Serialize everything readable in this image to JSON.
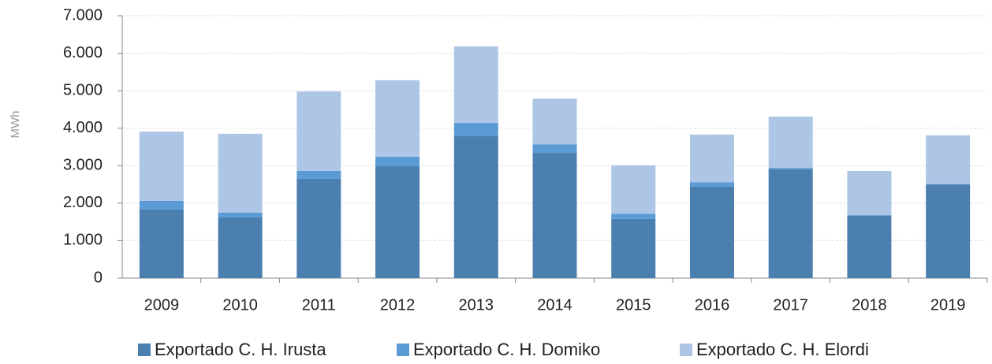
{
  "chart_data": {
    "type": "stacked_bar",
    "y_label": "MWh",
    "categories": [
      "2009",
      "2010",
      "2011",
      "2012",
      "2013",
      "2014",
      "2015",
      "2016",
      "2017",
      "2018",
      "2019"
    ],
    "series": [
      {
        "name": "Exportado C. H. Irusta",
        "color": "#4a7fb0",
        "values": [
          1830,
          1620,
          2650,
          3000,
          3800,
          3340,
          1580,
          2440,
          2900,
          1660,
          2500
        ]
      },
      {
        "name": "Exportado C. H. Domiko",
        "color": "#5b9bd5",
        "values": [
          230,
          125,
          210,
          240,
          340,
          230,
          140,
          120,
          40,
          20,
          10
        ]
      },
      {
        "name": "Exportado C. H. Elordi",
        "color": "#adc6e6",
        "values": [
          1850,
          2105,
          2120,
          2040,
          2040,
          1220,
          1290,
          1270,
          1370,
          1180,
          1300
        ]
      }
    ],
    "ylim": [
      0,
      7000
    ],
    "yticks": [
      0,
      {
        "value": 1000,
        "label": "1.000"
      },
      {
        "value": 2000,
        "label": "2.000"
      },
      {
        "value": 3000,
        "label": "3.000"
      },
      {
        "value": 4000,
        "label": "4.000"
      },
      {
        "value": 5000,
        "label": "5.000"
      },
      {
        "value": 6000,
        "label": "6.000"
      },
      {
        "value": 7000,
        "label": "7.000"
      }
    ],
    "grid": true,
    "legend": "bottom"
  }
}
